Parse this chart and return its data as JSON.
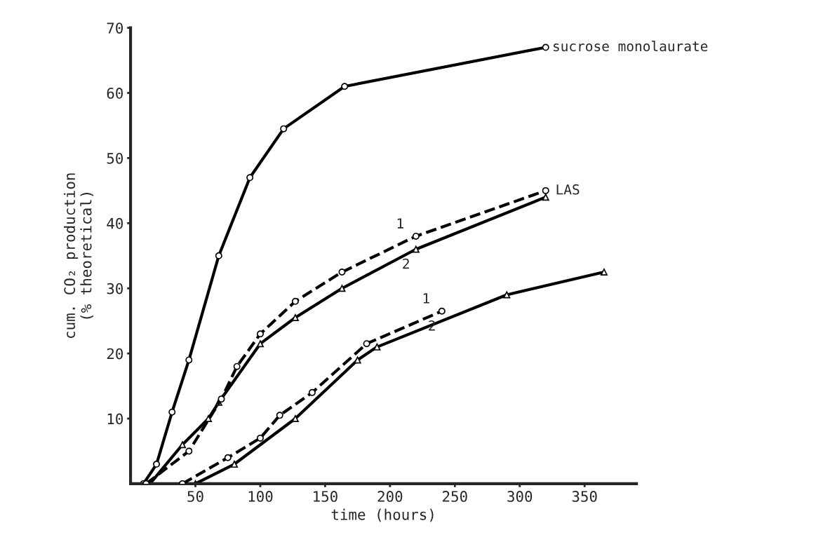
{
  "chart_data": {
    "type": "line",
    "xlabel": "time (hours)",
    "ylabel": "cum. CO₂ production\n(% theoretical)",
    "xlim": [
      0,
      390
    ],
    "xticks": [
      50,
      100,
      150,
      200,
      250,
      300,
      350
    ],
    "ylim": [
      0,
      70
    ],
    "yticks": [
      10,
      20,
      30,
      40,
      50,
      60,
      70
    ],
    "grid": false,
    "legend": false,
    "series": [
      {
        "name": "sucrose monolaurate",
        "color": "#000000",
        "marker": "circle",
        "line_style": "solid",
        "x": [
          10,
          20,
          32,
          45,
          68,
          92,
          118,
          165,
          320
        ],
        "values": [
          0,
          3,
          11,
          19,
          35,
          47,
          54.5,
          61,
          67
        ]
      },
      {
        "color": "#000000",
        "marker": "circle",
        "line_style": "dashed",
        "x": [
          12,
          45,
          70,
          82,
          100,
          127,
          163,
          220,
          320
        ],
        "values": [
          0,
          5,
          13,
          18,
          23,
          28,
          32.5,
          38,
          45
        ]
      },
      {
        "color": "#000000",
        "marker": "triangle",
        "line_style": "solid",
        "x": [
          15,
          40,
          60,
          68,
          100,
          127,
          163,
          220,
          320
        ],
        "values": [
          0,
          6,
          10,
          12.5,
          21.5,
          25.5,
          30,
          36,
          44
        ]
      },
      {
        "color": "#000000",
        "marker": "circle",
        "line_style": "dashed",
        "x": [
          40,
          75,
          100,
          115,
          140,
          182,
          240
        ],
        "values": [
          0,
          4,
          7,
          10.5,
          14,
          21.5,
          26.5
        ]
      },
      {
        "color": "#000000",
        "marker": "triangle",
        "line_style": "solid",
        "x": [
          50,
          80,
          127,
          175,
          190,
          290,
          365
        ],
        "values": [
          0,
          3,
          10,
          19,
          21,
          29,
          32.5
        ]
      }
    ],
    "annotations": [
      {
        "text": "LAS",
        "x": 320,
        "y": 45
      },
      {
        "text": "1",
        "x": 220,
        "y": 38
      },
      {
        "text": "2",
        "x": 220,
        "y": 36
      },
      {
        "text": "1",
        "x": 240,
        "y": 26.5
      },
      {
        "text": "2",
        "x": 240,
        "y": 26.5
      }
    ]
  }
}
